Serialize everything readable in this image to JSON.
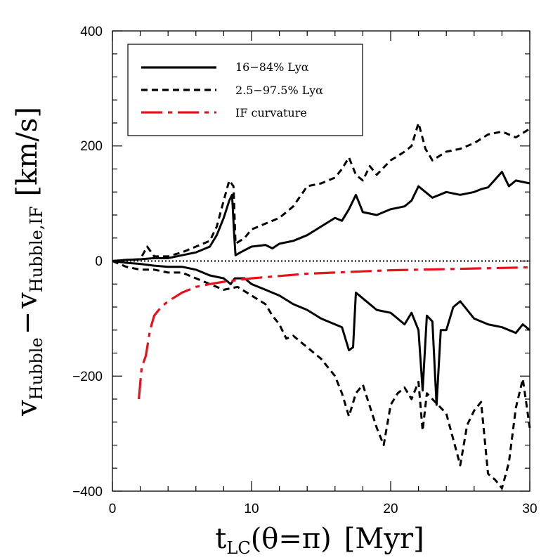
{
  "chart_data": {
    "type": "line",
    "xlabel": "t_LC(θ=π) [Myr]",
    "xlabel_parts": {
      "main": "t",
      "sub": "LC",
      "rest": "(θ=π)",
      "unit": "[Myr]"
    },
    "ylabel": "v_Hubble − v_Hubble,IF [km/s]",
    "ylabel_parts": {
      "v1": "v",
      "sub1": "Hubble",
      "minus": "−",
      "v2": "v",
      "sub2": "Hubble,IF",
      "unit": "[km/s]"
    },
    "xlim": [
      0,
      30
    ],
    "ylim": [
      -400,
      400
    ],
    "xticks": [
      0,
      10,
      20,
      30
    ],
    "xtick_labels": [
      "0",
      "10",
      "20",
      "30"
    ],
    "yticks": [
      -400,
      -200,
      0,
      200,
      400
    ],
    "ytick_labels": [
      "−400",
      "−200",
      "0",
      "200",
      "400"
    ],
    "grid": false,
    "legend_position": "top-left",
    "reference_line": {
      "y": 0,
      "style": "dotted",
      "color": "#000000"
    },
    "series": [
      {
        "name": "16−84% Lyα",
        "style": "solid",
        "color": "#000000",
        "bands": {
          "upper": [
            [
              0,
              0
            ],
            [
              1,
              2
            ],
            [
              2,
              3
            ],
            [
              3,
              5
            ],
            [
              4,
              5
            ],
            [
              5,
              10
            ],
            [
              6,
              15
            ],
            [
              7,
              25
            ],
            [
              7.5,
              45
            ],
            [
              8,
              75
            ],
            [
              8.4,
              105
            ],
            [
              8.6,
              115
            ],
            [
              8.75,
              45
            ],
            [
              8.85,
              10
            ],
            [
              9.2,
              15
            ],
            [
              10,
              25
            ],
            [
              11,
              28
            ],
            [
              11.5,
              22
            ],
            [
              12,
              30
            ],
            [
              13,
              35
            ],
            [
              14,
              45
            ],
            [
              15,
              60
            ],
            [
              16,
              75
            ],
            [
              16.5,
              70
            ],
            [
              17,
              90
            ],
            [
              17.5,
              115
            ],
            [
              18,
              85
            ],
            [
              19,
              80
            ],
            [
              20,
              90
            ],
            [
              21,
              95
            ],
            [
              21.5,
              105
            ],
            [
              22,
              130
            ],
            [
              22.5,
              120
            ],
            [
              23,
              110
            ],
            [
              24,
              120
            ],
            [
              25,
              115
            ],
            [
              26,
              120
            ],
            [
              26.5,
              125
            ],
            [
              27,
              128
            ],
            [
              28,
              155
            ],
            [
              28.5,
              130
            ],
            [
              29,
              140
            ],
            [
              30,
              135
            ]
          ],
          "lower": [
            [
              0,
              0
            ],
            [
              1,
              -3
            ],
            [
              2,
              -5
            ],
            [
              3,
              -8
            ],
            [
              4,
              -10
            ],
            [
              5,
              -10
            ],
            [
              6,
              -15
            ],
            [
              7,
              -25
            ],
            [
              8,
              -30
            ],
            [
              8.5,
              -40
            ],
            [
              8.8,
              -30
            ],
            [
              9.5,
              -30
            ],
            [
              10,
              -40
            ],
            [
              11,
              -50
            ],
            [
              12,
              -60
            ],
            [
              13,
              -75
            ],
            [
              14,
              -85
            ],
            [
              15,
              -100
            ],
            [
              16,
              -110
            ],
            [
              16.5,
              -115
            ],
            [
              17,
              -155
            ],
            [
              17.3,
              -150
            ],
            [
              17.5,
              -55
            ],
            [
              18,
              -65
            ],
            [
              19,
              -85
            ],
            [
              20,
              -90
            ],
            [
              20.5,
              -100
            ],
            [
              21,
              -110
            ],
            [
              21.5,
              -90
            ],
            [
              22,
              -120
            ],
            [
              22.3,
              -225
            ],
            [
              22.6,
              -95
            ],
            [
              23,
              -105
            ],
            [
              23.3,
              -250
            ],
            [
              23.6,
              -120
            ],
            [
              24,
              -120
            ],
            [
              24.5,
              -80
            ],
            [
              25,
              -70
            ],
            [
              26,
              -100
            ],
            [
              27,
              -110
            ],
            [
              28,
              -115
            ],
            [
              29,
              -125
            ],
            [
              29.5,
              -110
            ],
            [
              30,
              -120
            ]
          ]
        }
      },
      {
        "name": "2.5−97.5% Lyα",
        "style": "dashed",
        "color": "#000000",
        "bands": {
          "upper": [
            [
              0,
              0
            ],
            [
              1,
              2
            ],
            [
              2,
              3
            ],
            [
              2.5,
              25
            ],
            [
              3,
              8
            ],
            [
              4,
              8
            ],
            [
              5,
              15
            ],
            [
              6,
              25
            ],
            [
              7,
              35
            ],
            [
              7.5,
              60
            ],
            [
              8,
              105
            ],
            [
              8.4,
              140
            ],
            [
              8.7,
              130
            ],
            [
              8.85,
              30
            ],
            [
              9.5,
              40
            ],
            [
              10,
              55
            ],
            [
              11,
              65
            ],
            [
              12,
              75
            ],
            [
              13,
              95
            ],
            [
              14,
              130
            ],
            [
              15,
              135
            ],
            [
              16,
              145
            ],
            [
              16.5,
              160
            ],
            [
              17,
              180
            ],
            [
              17.5,
              150
            ],
            [
              18,
              140
            ],
            [
              18.5,
              165
            ],
            [
              19,
              150
            ],
            [
              20,
              175
            ],
            [
              21,
              190
            ],
            [
              21.5,
              200
            ],
            [
              22,
              240
            ],
            [
              22.5,
              195
            ],
            [
              23,
              175
            ],
            [
              24,
              190
            ],
            [
              25,
              195
            ],
            [
              26,
              205
            ],
            [
              27,
              220
            ],
            [
              28,
              225
            ],
            [
              29,
              215
            ],
            [
              30,
              230
            ]
          ],
          "lower": [
            [
              0,
              0
            ],
            [
              1,
              -10
            ],
            [
              2,
              -15
            ],
            [
              3,
              -15
            ],
            [
              4,
              -20
            ],
            [
              5,
              -20
            ],
            [
              6,
              -30
            ],
            [
              7,
              -40
            ],
            [
              8,
              -50
            ],
            [
              9,
              -45
            ],
            [
              10,
              -60
            ],
            [
              11,
              -75
            ],
            [
              11.5,
              -95
            ],
            [
              12,
              -110
            ],
            [
              12.5,
              -135
            ],
            [
              13,
              -130
            ],
            [
              14,
              -150
            ],
            [
              15,
              -170
            ],
            [
              16,
              -200
            ],
            [
              16.5,
              -230
            ],
            [
              17,
              -270
            ],
            [
              17.5,
              -230
            ],
            [
              18,
              -215
            ],
            [
              19,
              -290
            ],
            [
              19.5,
              -320
            ],
            [
              20,
              -250
            ],
            [
              20.5,
              -230
            ],
            [
              21,
              -220
            ],
            [
              21.5,
              -240
            ],
            [
              22,
              -210
            ],
            [
              22.3,
              -295
            ],
            [
              22.6,
              -230
            ],
            [
              23,
              -240
            ],
            [
              24,
              -265
            ],
            [
              25,
              -355
            ],
            [
              25.5,
              -285
            ],
            [
              26,
              -260
            ],
            [
              26.5,
              -245
            ],
            [
              27,
              -370
            ],
            [
              27.5,
              -380
            ],
            [
              28,
              -395
            ],
            [
              28.5,
              -350
            ],
            [
              29,
              -255
            ],
            [
              29.5,
              -205
            ],
            [
              30,
              -290
            ]
          ]
        }
      },
      {
        "name": "IF curvature",
        "style": "longdash",
        "color": "#e8101a",
        "points": [
          [
            1.9,
            -240
          ],
          [
            2.1,
            -185
          ],
          [
            2.4,
            -165
          ],
          [
            2.7,
            -120
          ],
          [
            3,
            -95
          ],
          [
            3.5,
            -80
          ],
          [
            4,
            -70
          ],
          [
            5,
            -55
          ],
          [
            6,
            -45
          ],
          [
            7,
            -40
          ],
          [
            8,
            -36
          ],
          [
            9,
            -33
          ],
          [
            10,
            -30
          ],
          [
            12,
            -26
          ],
          [
            14,
            -22
          ],
          [
            16,
            -20
          ],
          [
            18,
            -18
          ],
          [
            20,
            -16
          ],
          [
            22,
            -15
          ],
          [
            24,
            -14
          ],
          [
            26,
            -13
          ],
          [
            28,
            -12
          ],
          [
            30,
            -11
          ]
        ]
      }
    ]
  }
}
